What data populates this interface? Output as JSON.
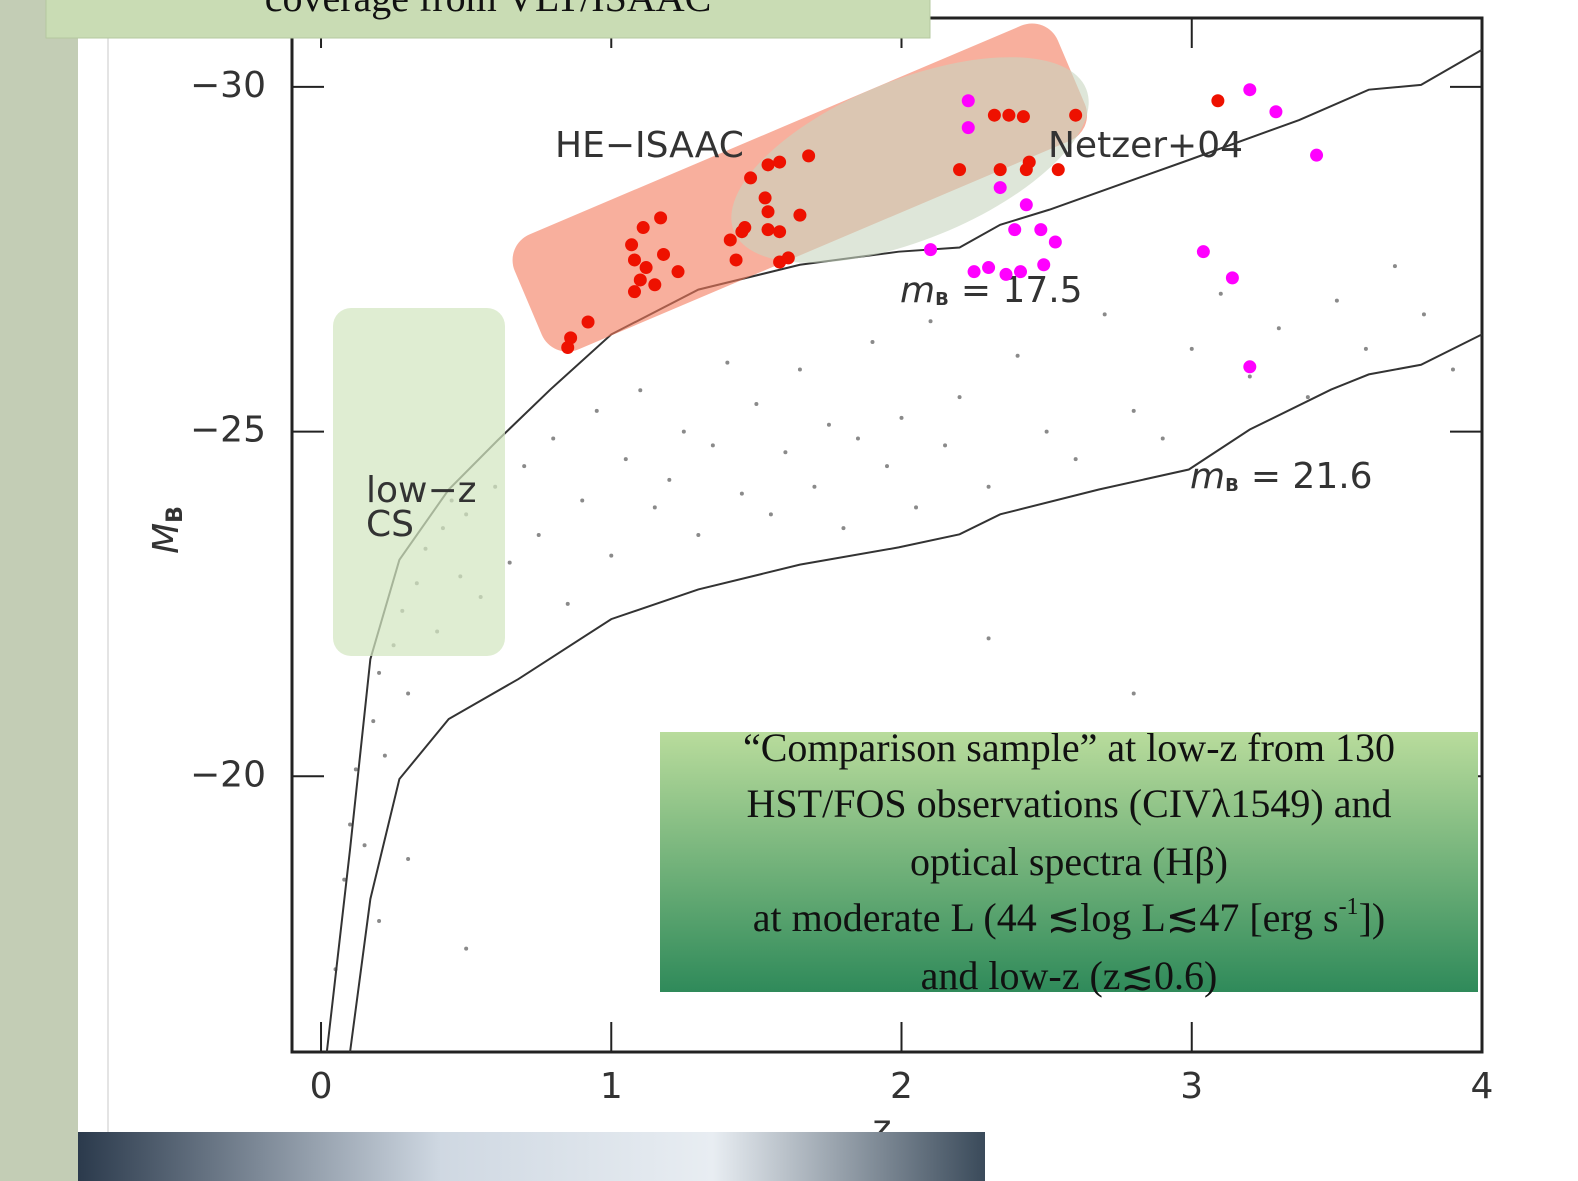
{
  "chart_data": {
    "type": "scatter",
    "x_label": "z",
    "y_label": {
      "symbol": "M",
      "subscript": "B"
    },
    "xlim": [
      -0.1,
      4
    ],
    "ylim": [
      -16,
      -31
    ],
    "xticks": [
      0,
      1,
      2,
      3,
      4
    ],
    "yticks": [
      {
        "value": -30,
        "label": "−30"
      },
      {
        "value": -25,
        "label": "−25"
      },
      {
        "value": -20,
        "label": "−20"
      }
    ],
    "series": [
      {
        "color": "#8a8a8a",
        "x": [
          0.05,
          0.08,
          0.1,
          0.12,
          0.15,
          0.18,
          0.2,
          0.22,
          0.25,
          0.28,
          0.3,
          0.33,
          0.36,
          0.4,
          0.42,
          0.45,
          0.48,
          0.5,
          0.55,
          0.6,
          0.65,
          0.7,
          0.75,
          0.8,
          0.85,
          0.9,
          0.95,
          1.0,
          1.05,
          1.1,
          1.15,
          1.2,
          1.25,
          1.3,
          1.35,
          1.4,
          1.45,
          1.5,
          1.55,
          1.6,
          1.65,
          1.7,
          1.75,
          1.8,
          1.85,
          1.9,
          1.95,
          2.0,
          2.05,
          2.1,
          2.15,
          2.2,
          2.3,
          2.4,
          2.5,
          2.6,
          2.7,
          2.8,
          2.9,
          3.0,
          3.1,
          3.2,
          3.3,
          3.4,
          3.5,
          3.6,
          3.7,
          3.8,
          3.9,
          0.5,
          0.3,
          0.2,
          2.8,
          2.3
        ],
        "values": [
          -17.2,
          -18.5,
          -19.3,
          -20.1,
          -19.0,
          -20.8,
          -21.5,
          -20.3,
          -21.9,
          -22.4,
          -21.2,
          -22.8,
          -23.3,
          -22.1,
          -23.6,
          -24.0,
          -22.9,
          -23.8,
          -22.6,
          -24.2,
          -23.1,
          -24.5,
          -23.5,
          -24.9,
          -22.5,
          -24.0,
          -25.3,
          -23.2,
          -24.6,
          -25.6,
          -23.9,
          -24.3,
          -25.0,
          -23.5,
          -24.8,
          -26.0,
          -24.1,
          -25.4,
          -23.8,
          -24.7,
          -25.9,
          -24.2,
          -25.1,
          -23.6,
          -24.9,
          -26.3,
          -24.5,
          -25.2,
          -23.9,
          -26.6,
          -24.8,
          -25.5,
          -24.2,
          -26.1,
          -25.0,
          -24.6,
          -26.7,
          -25.3,
          -24.9,
          -26.2,
          -27.0,
          -25.8,
          -26.5,
          -25.5,
          -26.9,
          -26.2,
          -27.4,
          -26.7,
          -25.9,
          -17.5,
          -18.8,
          -17.9,
          -21.2,
          -22.0
        ]
      },
      {
        "name": "HE−ISAAC",
        "color": "#ee1100",
        "x": [
          0.85,
          0.86,
          0.92,
          1.07,
          1.11,
          1.17,
          1.08,
          1.12,
          1.18,
          1.1,
          1.08,
          1.15,
          1.23,
          1.43,
          1.41,
          1.46,
          1.58,
          1.61,
          3.09,
          2.54,
          1.48,
          1.54,
          1.58,
          1.68,
          1.53,
          1.54,
          1.65,
          1.54,
          1.58,
          1.45,
          2.2,
          2.32,
          2.37,
          2.42,
          2.6,
          2.44,
          2.43,
          2.34
        ],
        "values": [
          -26.22,
          -26.36,
          -26.59,
          -27.71,
          -27.96,
          -28.1,
          -27.49,
          -27.38,
          -27.57,
          -27.2,
          -27.03,
          -27.13,
          -27.32,
          -27.49,
          -27.78,
          -27.96,
          -27.46,
          -27.52,
          -29.8,
          -28.8,
          -28.68,
          -28.87,
          -28.91,
          -29.0,
          -28.39,
          -28.19,
          -28.14,
          -27.93,
          -27.9,
          -27.9,
          -28.8,
          -29.59,
          -29.59,
          -29.57,
          -29.59,
          -28.91,
          -28.8,
          -28.8
        ]
      },
      {
        "name": "Netzer+04",
        "color": "#ff00ff",
        "x": [
          2.23,
          3.2,
          3.29,
          3.43,
          2.43,
          2.39,
          2.48,
          2.53,
          2.1,
          2.25,
          2.3,
          2.36,
          2.41,
          2.49,
          3.04,
          3.14,
          3.2,
          2.34,
          2.23
        ],
        "values": [
          -29.8,
          -29.96,
          -29.64,
          -29.01,
          -28.29,
          -27.93,
          -27.93,
          -27.75,
          -27.64,
          -27.32,
          -27.38,
          -27.28,
          -27.32,
          -27.42,
          -27.61,
          -27.23,
          -25.94,
          -28.54,
          -29.41
        ]
      }
    ],
    "curves": [
      {
        "label": {
          "symbol": "m",
          "subscript": "B",
          "text": "= 17.5"
        },
        "x": [
          0.02,
          0.1,
          0.17,
          0.27,
          0.44,
          0.61,
          0.79,
          1.0,
          1.3,
          1.65,
          1.99,
          2.2,
          2.34,
          2.51,
          2.99,
          3.37,
          3.61,
          3.79,
          4.0
        ],
        "values": [
          -16.0,
          -18.94,
          -21.7,
          -23.14,
          -24.16,
          -24.88,
          -25.61,
          -26.41,
          -27.06,
          -27.42,
          -27.61,
          -27.67,
          -28.0,
          -28.22,
          -28.94,
          -29.52,
          -29.96,
          -30.03,
          -30.54
        ]
      },
      {
        "label": {
          "symbol": "m",
          "subscript": "B",
          "text": "= 21.6"
        },
        "x": [
          0.1,
          0.17,
          0.27,
          0.44,
          0.68,
          1.0,
          1.3,
          1.65,
          1.99,
          2.2,
          2.34,
          2.68,
          2.99,
          3.2,
          3.48,
          3.61,
          3.79,
          4.0
        ],
        "values": [
          -16.0,
          -18.22,
          -19.96,
          -20.83,
          -21.41,
          -22.28,
          -22.71,
          -23.07,
          -23.32,
          -23.51,
          -23.8,
          -24.16,
          -24.45,
          -25.03,
          -25.61,
          -25.83,
          -25.97,
          -26.41
        ]
      }
    ],
    "region_label": [
      "low−z",
      "CS"
    ]
  },
  "slide": {
    "top_box": "coverage from VLT/ISAAC",
    "note_box": {
      "lines": [
        "“Comparison sample” at low-z from 130",
        "HST/FOS  observations (CIVλ1549) and",
        "optical spectra (Hβ)"
      ],
      "line4": {
        "text": "at moderate  L (44 ≲log L≲47 [erg s",
        "sup": "-1",
        "tail": "])"
      },
      "line5": "and low-z (z≲0.6)"
    }
  }
}
